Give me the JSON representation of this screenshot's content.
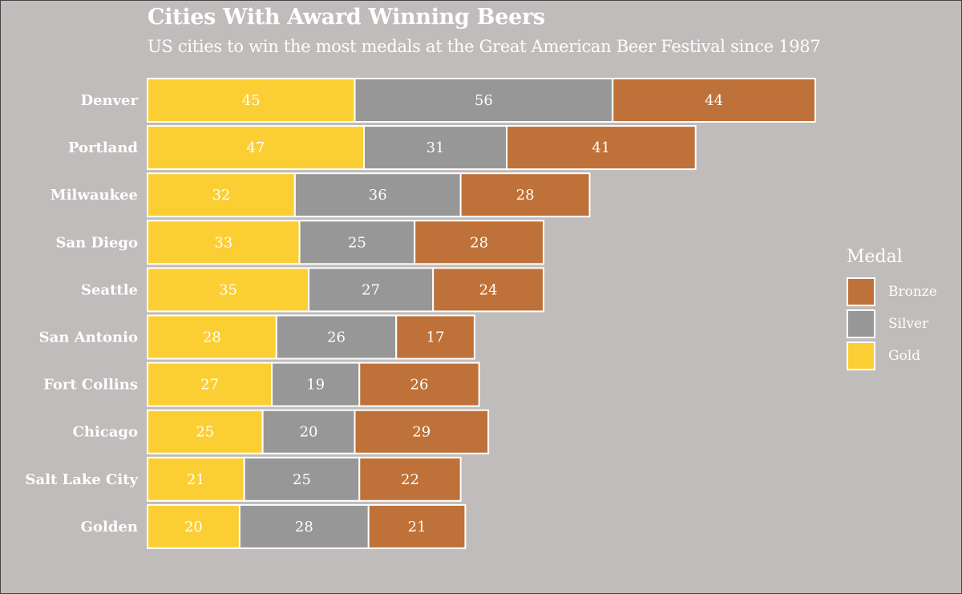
{
  "header": {
    "title": "Cities With Award Winning Beers",
    "subtitle": "US cities to win the most medals at the Great American Beer Festival since 1987"
  },
  "legend": {
    "title": "Medal",
    "items": [
      {
        "label": "Bronze",
        "color": "#be7138"
      },
      {
        "label": "Silver",
        "color": "#979797"
      },
      {
        "label": "Gold",
        "color": "#fbcf33"
      }
    ]
  },
  "chart_data": {
    "type": "bar",
    "orientation": "horizontal",
    "stacked": true,
    "title": "Cities With Award Winning Beers",
    "subtitle": "US cities to win the most medals at the Great American Beer Festival since 1987",
    "xlabel": "",
    "ylabel": "",
    "grid": false,
    "legend_position": "right",
    "categories": [
      "Denver",
      "Portland",
      "Milwaukee",
      "San Diego",
      "Seattle",
      "San Antonio",
      "Fort Collins",
      "Chicago",
      "Salt Lake City",
      "Golden"
    ],
    "series": [
      {
        "name": "Gold",
        "color": "#fbcf33",
        "values": [
          45,
          47,
          32,
          33,
          35,
          28,
          27,
          25,
          21,
          20
        ]
      },
      {
        "name": "Silver",
        "color": "#979797",
        "values": [
          56,
          31,
          36,
          25,
          27,
          26,
          19,
          20,
          25,
          28
        ]
      },
      {
        "name": "Bronze",
        "color": "#be7138",
        "values": [
          44,
          41,
          28,
          28,
          24,
          17,
          26,
          29,
          22,
          21
        ]
      }
    ]
  }
}
